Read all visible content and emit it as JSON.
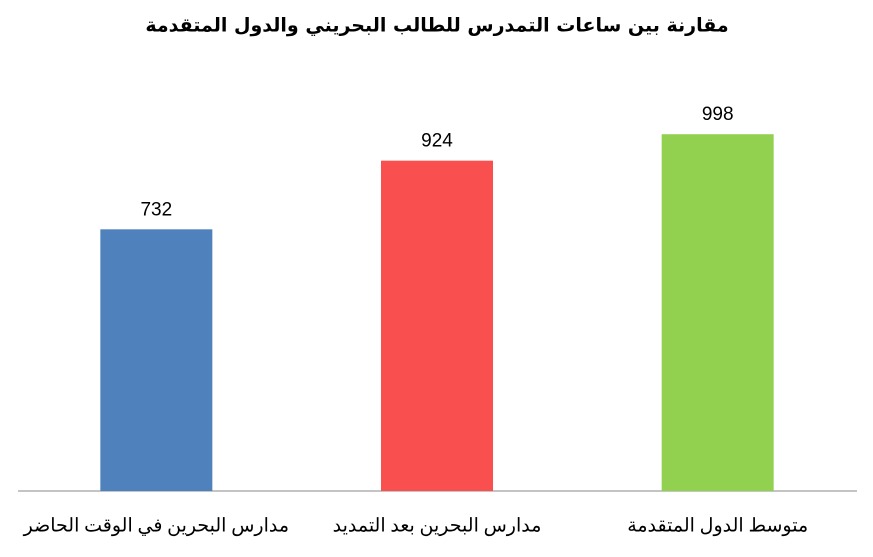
{
  "chart_data": {
    "type": "bar",
    "title": "مقارنة بين ساعات التمدرس للطالب البحريني والدول المتقدمة",
    "categories": [
      "مدارس البحرين في الوقت الحاضر",
      "مدارس البحرين بعد التمديد",
      "متوسط الدول المتقدمة"
    ],
    "values": [
      732,
      924,
      998
    ],
    "colors": [
      "#4f81bd",
      "#fa4f4f",
      "#92d050"
    ],
    "ylim": [
      0,
      1200
    ]
  }
}
